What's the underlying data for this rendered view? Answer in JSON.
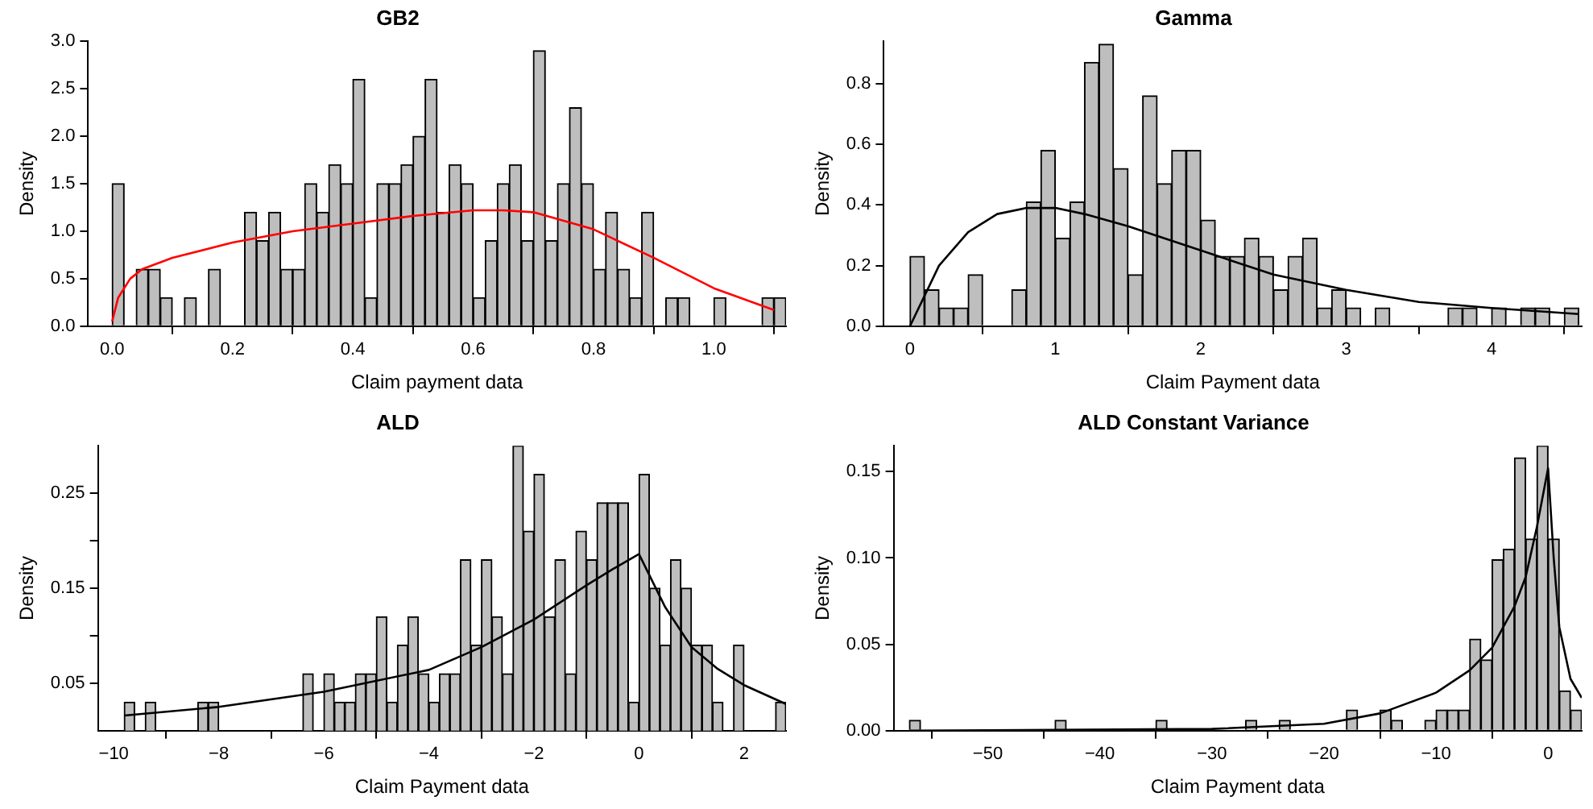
{
  "chart_data": [
    {
      "type": "histogram",
      "title": "GB2",
      "xlabel": "Claim payment data",
      "ylabel": "Density",
      "xlim": [
        -0.04,
        1.12
      ],
      "ylim": [
        0,
        3
      ],
      "xticks": [
        {
          "value": 0,
          "label": "0.0"
        },
        0.2,
        0.4,
        0.6,
        0.8,
        {
          "value": 1,
          "label": "1.0"
        }
      ],
      "yticks": [
        {
          "value": 0,
          "label": "0.0"
        },
        0.5,
        {
          "value": 1,
          "label": "1.0"
        },
        1.5,
        {
          "value": 2,
          "label": "2.0"
        },
        2.5,
        {
          "value": 3,
          "label": "3.0"
        }
      ],
      "series": [
        {
          "type": "histogram",
          "color": "#bebebe",
          "bins": [
            0,
            0.02,
            0.04,
            0.06,
            0.08,
            0.1,
            0.12,
            0.14,
            0.16,
            0.18,
            0.2,
            0.22,
            0.24,
            0.26,
            0.28,
            0.3,
            0.32,
            0.34,
            0.36,
            0.38,
            0.4,
            0.42,
            0.44,
            0.46,
            0.48,
            0.5,
            0.52,
            0.54,
            0.56,
            0.58,
            0.6,
            0.62,
            0.64,
            0.66,
            0.68,
            0.7,
            0.72,
            0.74,
            0.76,
            0.78,
            0.8,
            0.82,
            0.84,
            0.86,
            0.88,
            0.9,
            0.92,
            0.94,
            0.96,
            0.98,
            1,
            1.02,
            1.04,
            1.06,
            1.08,
            1.1,
            1.12
          ],
          "values": [
            1.5,
            0,
            0.6,
            0.6,
            0.3,
            0,
            0.3,
            0,
            0.6,
            0,
            0,
            1.2,
            0.9,
            1.2,
            0.6,
            0.6,
            1.5,
            1.2,
            1.7,
            1.5,
            2.6,
            0.3,
            1.5,
            1.5,
            1.7,
            2.0,
            2.6,
            1.2,
            1.7,
            1.5,
            0.3,
            0.9,
            1.5,
            1.7,
            0.9,
            2.9,
            0.9,
            1.5,
            2.3,
            1.5,
            0.6,
            1.2,
            0.6,
            0.3,
            1.2,
            0,
            0.3,
            0.3,
            0,
            0,
            0.3,
            0,
            0,
            0,
            0.3,
            0.3
          ]
        },
        {
          "type": "line",
          "color": "#ff0000",
          "x": [
            0,
            0.01,
            0.03,
            0.05,
            0.1,
            0.2,
            0.3,
            0.4,
            0.5,
            0.6,
            0.65,
            0.7,
            0.8,
            0.9,
            1.0,
            1.1
          ],
          "values": [
            0.05,
            0.3,
            0.5,
            0.6,
            0.72,
            0.88,
            1.0,
            1.08,
            1.16,
            1.22,
            1.22,
            1.2,
            1.02,
            0.72,
            0.4,
            0.17
          ]
        }
      ]
    },
    {
      "type": "histogram",
      "title": "Gamma",
      "xlabel": "Claim Payment data",
      "ylabel": "Density",
      "xlim": [
        -0.18,
        4.62
      ],
      "ylim": [
        0,
        0.94
      ],
      "xticks": [
        0,
        1,
        2,
        3,
        4
      ],
      "yticks": [
        {
          "value": 0,
          "label": "0.0"
        },
        0.2,
        0.4,
        0.6,
        0.8
      ],
      "series": [
        {
          "type": "histogram",
          "color": "#bebebe",
          "bins": [
            0,
            0.1,
            0.2,
            0.3,
            0.4,
            0.5,
            0.6,
            0.7,
            0.8,
            0.9,
            1,
            1.1,
            1.2,
            1.3,
            1.4,
            1.5,
            1.6,
            1.7,
            1.8,
            1.9,
            2,
            2.1,
            2.2,
            2.3,
            2.4,
            2.5,
            2.6,
            2.7,
            2.8,
            2.9,
            3,
            3.1,
            3.2,
            3.3,
            3.4,
            3.5,
            3.6,
            3.7,
            3.8,
            3.9,
            4,
            4.1,
            4.2,
            4.3,
            4.4,
            4.5,
            4.6
          ],
          "values": [
            0.23,
            0.12,
            0.06,
            0.06,
            0.17,
            0,
            0,
            0.12,
            0.41,
            0.58,
            0.29,
            0.41,
            0.87,
            0.93,
            0.52,
            0.17,
            0.76,
            0.47,
            0.58,
            0.58,
            0.35,
            0.23,
            0.23,
            0.29,
            0.23,
            0.12,
            0.23,
            0.29,
            0.06,
            0.12,
            0.06,
            0,
            0.06,
            0,
            0,
            0,
            0,
            0.06,
            0.06,
            0,
            0.06,
            0,
            0.06,
            0.06,
            0,
            0.06
          ]
        },
        {
          "type": "line",
          "color": "#000000",
          "x": [
            0,
            0.2,
            0.4,
            0.6,
            0.8,
            1.0,
            1.2,
            1.5,
            2.0,
            2.5,
            3.0,
            3.5,
            4.0,
            4.6
          ],
          "values": [
            0,
            0.2,
            0.31,
            0.37,
            0.39,
            0.39,
            0.37,
            0.33,
            0.25,
            0.17,
            0.12,
            0.08,
            0.06,
            0.04
          ]
        }
      ]
    },
    {
      "type": "histogram",
      "title": "ALD",
      "xlabel": "Claim Payment data",
      "ylabel": "Density",
      "xlim": [
        -10.3,
        2.8
      ],
      "ylim": [
        0,
        0.3
      ],
      "xticks": [
        {
          "value": -10,
          "label": "−10"
        },
        {
          "value": -8,
          "label": "−8"
        },
        {
          "value": -6,
          "label": "−6"
        },
        {
          "value": -4,
          "label": "−4"
        },
        {
          "value": -2,
          "label": "−2"
        },
        0,
        2
      ],
      "yticks": [
        0.05,
        {
          "value": 0.1,
          "label": null
        },
        0.15,
        {
          "value": 0.2,
          "label": null
        },
        0.25
      ],
      "series": [
        {
          "type": "histogram",
          "color": "#bebebe",
          "bins": [
            -9.8,
            -9.6,
            -9.4,
            -9.2,
            -9.0,
            -8.8,
            -8.6,
            -8.4,
            -8.2,
            -8.0,
            -7.8,
            -7.6,
            -7.4,
            -7.2,
            -7.0,
            -6.8,
            -6.6,
            -6.4,
            -6.2,
            -6.0,
            -5.8,
            -5.6,
            -5.4,
            -5.2,
            -5.0,
            -4.8,
            -4.6,
            -4.4,
            -4.2,
            -4.0,
            -3.8,
            -3.6,
            -3.4,
            -3.2,
            -3.0,
            -2.8,
            -2.6,
            -2.4,
            -2.2,
            -2.0,
            -1.8,
            -1.6,
            -1.4,
            -1.2,
            -1.0,
            -0.8,
            -0.6,
            -0.4,
            -0.2,
            0,
            0.2,
            0.4,
            0.6,
            0.8,
            1.0,
            1.2,
            1.4,
            1.6,
            1.8,
            2.0,
            2.2,
            2.4,
            2.6,
            2.8
          ],
          "values": [
            0.03,
            0,
            0.03,
            0,
            0,
            0,
            0,
            0.03,
            0.03,
            0,
            0,
            0,
            0,
            0,
            0,
            0,
            0,
            0.06,
            0,
            0.06,
            0.03,
            0.03,
            0.06,
            0.06,
            0.12,
            0.03,
            0.09,
            0.12,
            0.06,
            0.03,
            0.06,
            0.06,
            0.18,
            0.09,
            0.18,
            0.12,
            0.06,
            0.3,
            0.21,
            0.27,
            0.12,
            0.18,
            0.06,
            0.21,
            0.18,
            0.24,
            0.24,
            0.24,
            0.03,
            0.27,
            0.15,
            0.09,
            0.18,
            0.15,
            0.09,
            0.09,
            0.03,
            0,
            0.09,
            0,
            0,
            0,
            0.03
          ]
        },
        {
          "type": "line",
          "color": "#000000",
          "x": [
            -9.8,
            -8,
            -6,
            -4,
            -3,
            -2,
            -1,
            -0.5,
            0,
            0.5,
            1,
            1.5,
            2,
            2.8
          ],
          "values": [
            0.016,
            0.025,
            0.041,
            0.064,
            0.088,
            0.117,
            0.153,
            0.17,
            0.186,
            0.13,
            0.088,
            0.065,
            0.048,
            0.028
          ]
        }
      ]
    },
    {
      "type": "histogram",
      "title": "ALD Constant Variance",
      "xlabel": "Claim Payment data",
      "ylabel": "Density",
      "xlim": [
        -58.4,
        3
      ],
      "ylim": [
        0,
        0.165
      ],
      "xticks": [
        {
          "value": -50,
          "label": "−50"
        },
        {
          "value": -40,
          "label": "−40"
        },
        {
          "value": -30,
          "label": "−30"
        },
        {
          "value": -20,
          "label": "−20"
        },
        {
          "value": -10,
          "label": "−10"
        },
        0
      ],
      "yticks": [
        {
          "value": 0,
          "label": "0.00"
        },
        0.05,
        {
          "value": 0.1,
          "label": "0.10"
        },
        0.15
      ],
      "series": [
        {
          "type": "histogram",
          "color": "#bebebe",
          "bins": [
            -57,
            -56,
            -55,
            -54,
            -53,
            -52,
            -51,
            -50,
            -49,
            -48,
            -47,
            -46,
            -45,
            -44,
            -43,
            -42,
            -41,
            -40,
            -39,
            -38,
            -37,
            -36,
            -35,
            -34,
            -33,
            -32,
            -31,
            -30,
            -29,
            -28,
            -27,
            -26,
            -25,
            -24,
            -23,
            -22,
            -21,
            -20,
            -19,
            -18,
            -17,
            -16,
            -15,
            -14,
            -13,
            -12,
            -11,
            -10,
            -9,
            -8,
            -7,
            -6,
            -5,
            -4,
            -3,
            -2,
            -1,
            0,
            1,
            2,
            3
          ],
          "values": [
            0.006,
            0,
            0,
            0,
            0,
            0,
            0,
            0,
            0,
            0,
            0,
            0,
            0,
            0.006,
            0,
            0,
            0,
            0,
            0,
            0,
            0,
            0,
            0.006,
            0,
            0,
            0,
            0,
            0,
            0,
            0,
            0.006,
            0,
            0,
            0.006,
            0,
            0,
            0,
            0,
            0,
            0.012,
            0,
            0,
            0.012,
            0.006,
            0,
            0,
            0.006,
            0.012,
            0.012,
            0.012,
            0.053,
            0.041,
            0.099,
            0.105,
            0.158,
            0.111,
            0.165,
            0.111,
            0.023,
            0.012
          ]
        },
        {
          "type": "line",
          "color": "#000000",
          "x": [
            -57,
            -30,
            -20,
            -15,
            -10,
            -7,
            -5,
            -3,
            -2,
            -1,
            0,
            0.5,
            1,
            2,
            3
          ],
          "values": [
            0,
            0.001,
            0.004,
            0.01,
            0.022,
            0.035,
            0.048,
            0.072,
            0.089,
            0.118,
            0.152,
            0.1,
            0.06,
            0.03,
            0.019
          ]
        }
      ]
    }
  ]
}
